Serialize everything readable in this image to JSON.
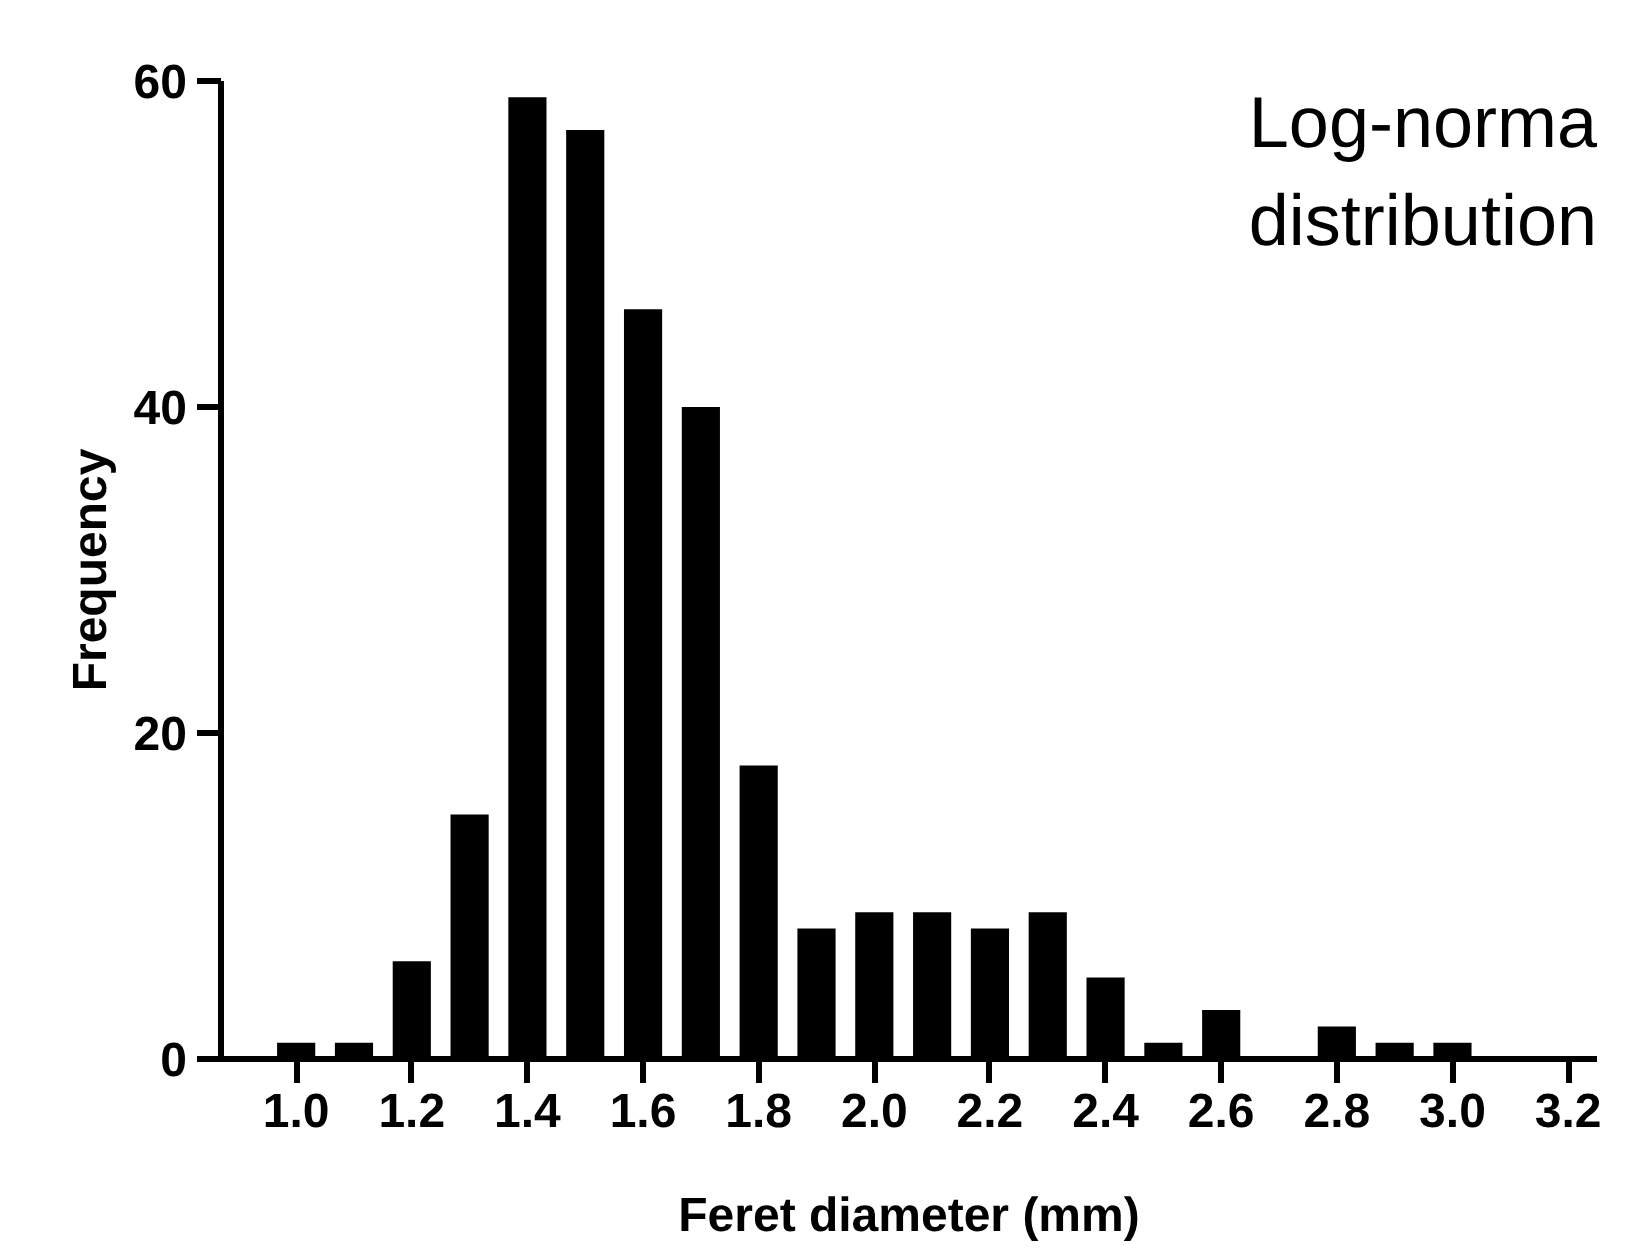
{
  "chart_data": {
    "type": "histogram",
    "xlabel": "Feret diameter (mm)",
    "ylabel": "Frequency",
    "annotations": [
      "Log-norma\ndistribution"
    ],
    "bins": [
      0.95,
      1.05,
      1.15,
      1.25,
      1.35,
      1.45,
      1.55,
      1.65,
      1.75,
      1.85,
      1.95,
      2.05,
      2.15,
      2.25,
      2.35,
      2.45,
      2.55,
      2.65,
      2.75,
      2.85,
      2.95,
      3.05
    ],
    "values": [
      1,
      1,
      6,
      15,
      59,
      57,
      46,
      40,
      18,
      8,
      9,
      9,
      8,
      9,
      5,
      1,
      3,
      0,
      2,
      1,
      1
    ],
    "color": "#000000",
    "xlim": [
      0.87,
      3.25
    ],
    "ylim": [
      0,
      60
    ],
    "xticks": [
      {
        "value": 1.0,
        "label": "1.0"
      },
      {
        "value": 1.2,
        "label": "1.2"
      },
      {
        "value": 1.4,
        "label": "1.4"
      },
      {
        "value": 1.6,
        "label": "1.6"
      },
      {
        "value": 1.8,
        "label": "1.8"
      },
      {
        "value": 2.0,
        "label": "2.0"
      },
      {
        "value": 2.2,
        "label": "2.2"
      },
      {
        "value": 2.4,
        "label": "2.4"
      },
      {
        "value": 2.6,
        "label": "2.6"
      },
      {
        "value": 2.8,
        "label": "2.8"
      },
      {
        "value": 3.0,
        "label": "3.0"
      },
      {
        "value": 3.2,
        "label": "3.2"
      }
    ],
    "yticks": [
      0,
      20,
      40,
      60
    ],
    "grid": false
  }
}
